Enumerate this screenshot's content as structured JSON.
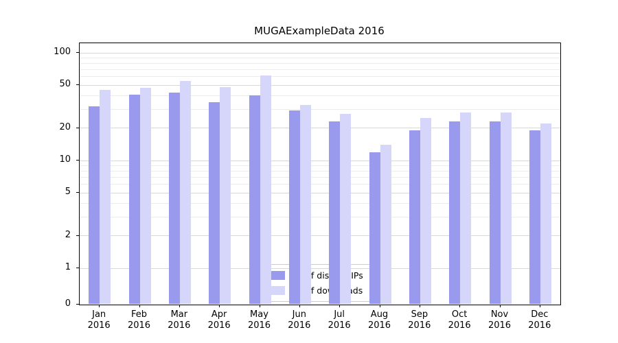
{
  "chart_data": {
    "type": "bar",
    "title": "MUGAExampleData 2016",
    "year_label": "2016",
    "categories": [
      "Jan",
      "Feb",
      "Mar",
      "Apr",
      "May",
      "Jun",
      "Jul",
      "Aug",
      "Sep",
      "Oct",
      "Nov",
      "Dec"
    ],
    "series": [
      {
        "name": "Nb of distinct IPs",
        "color": "#9999ee",
        "values": [
          32,
          41,
          43,
          35,
          40,
          29,
          23,
          12,
          19,
          23,
          23,
          19
        ]
      },
      {
        "name": "Nb of downloads",
        "color": "#d6d6fb",
        "values": [
          45,
          47,
          55,
          48,
          62,
          33,
          27,
          14,
          25,
          28,
          28,
          22
        ]
      }
    ],
    "yticks": [
      0,
      1,
      2,
      5,
      10,
      20,
      50,
      100
    ],
    "minor_gridlines": [
      3,
      4,
      6,
      7,
      8,
      9,
      30,
      40,
      60,
      70,
      80,
      90
    ],
    "scale": "symlog",
    "ylim": [
      0,
      100
    ],
    "grid": true,
    "legend_position": "lower center"
  }
}
